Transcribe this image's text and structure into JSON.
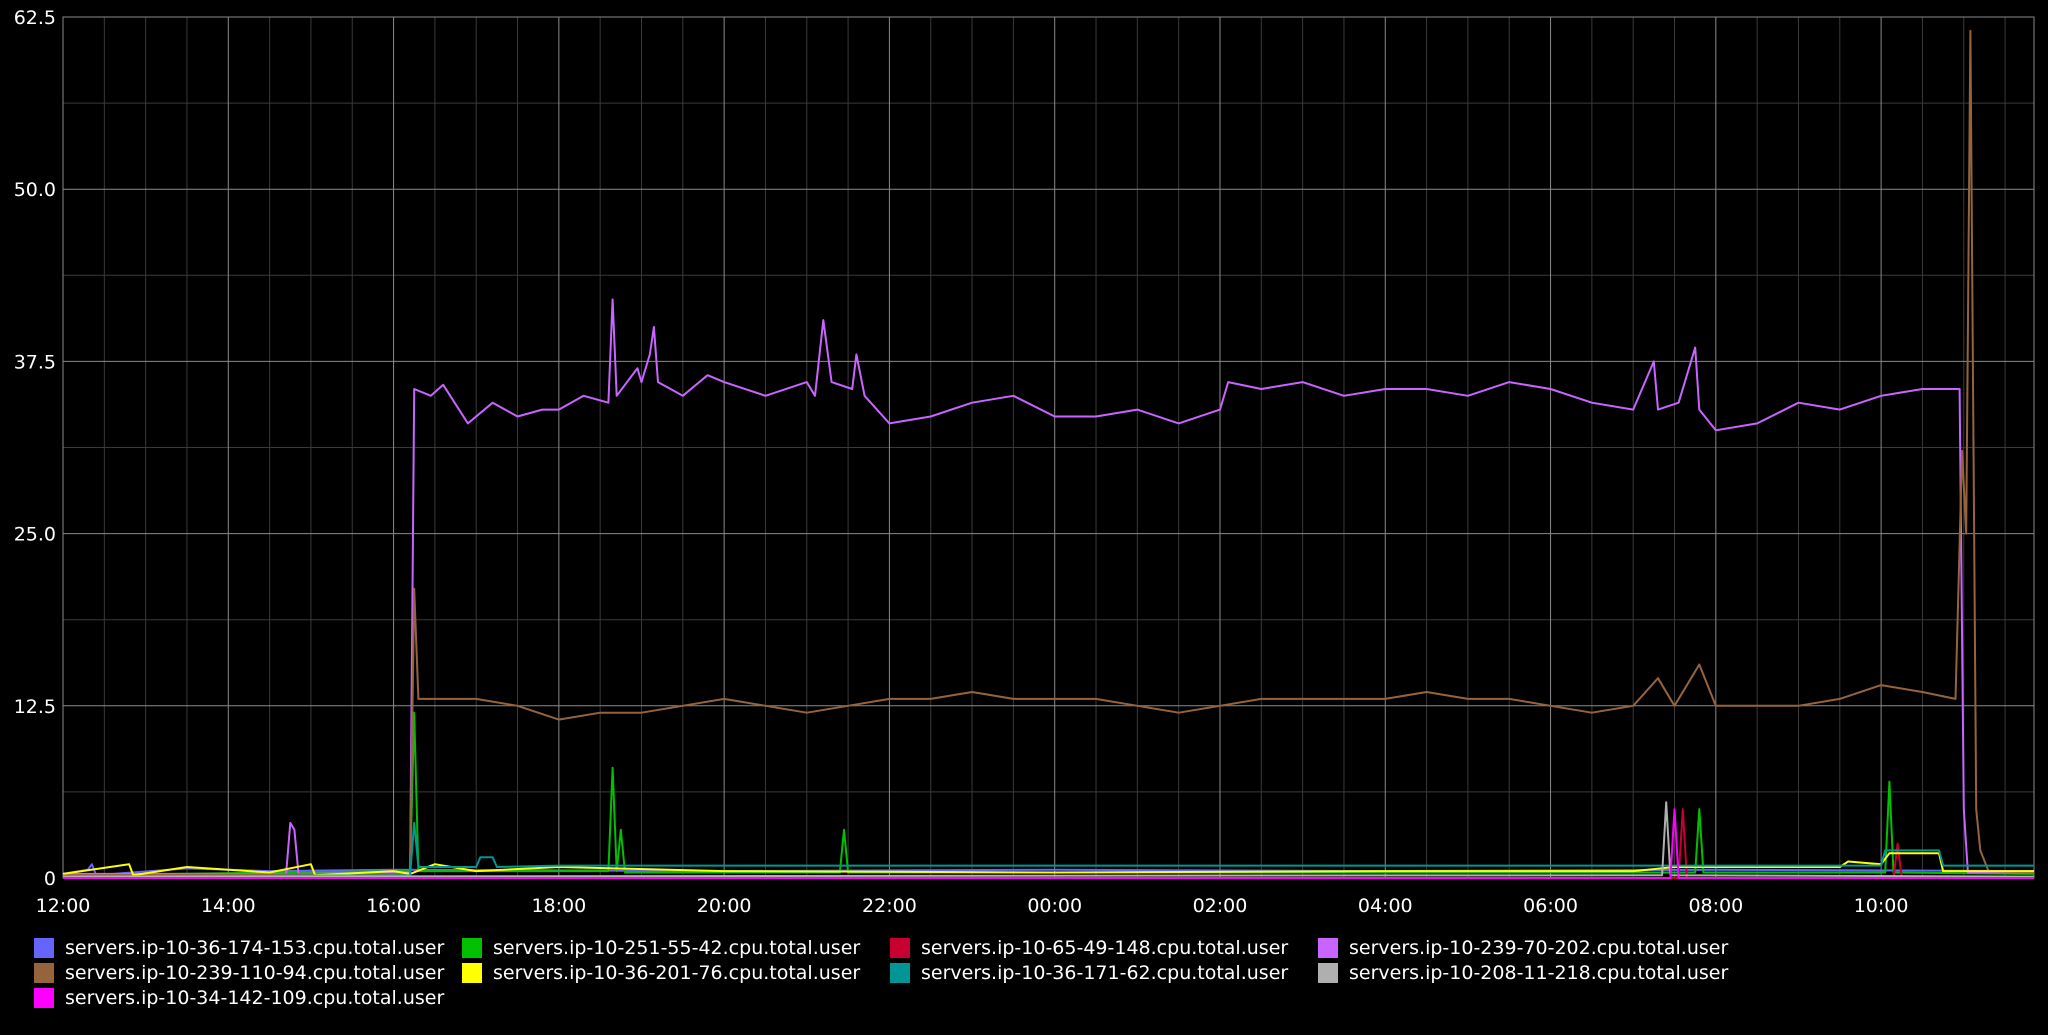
{
  "chart_data": {
    "type": "line",
    "title": "",
    "xlabel": "",
    "ylabel": "",
    "ylim": [
      0,
      62.5
    ],
    "y_ticks": [
      "0",
      "12.5",
      "25.0",
      "37.5",
      "50.0",
      "62.5"
    ],
    "x_range_hours": [
      0,
      23.85
    ],
    "x_ticks": [
      {
        "label": "12:00",
        "hour": 0
      },
      {
        "label": "14:00",
        "hour": 2
      },
      {
        "label": "16:00",
        "hour": 4
      },
      {
        "label": "18:00",
        "hour": 6
      },
      {
        "label": "20:00",
        "hour": 8
      },
      {
        "label": "22:00",
        "hour": 10
      },
      {
        "label": "00:00",
        "hour": 12
      },
      {
        "label": "02:00",
        "hour": 14
      },
      {
        "label": "04:00",
        "hour": 16
      },
      {
        "label": "06:00",
        "hour": 18
      },
      {
        "label": "08:00",
        "hour": 20
      },
      {
        "label": "10:00",
        "hour": 22
      }
    ],
    "grid": true,
    "legend_position": "bottom",
    "background": "#000000",
    "series": [
      {
        "name": "servers.ip-10-36-174-153.cpu.total.user",
        "color": "#6464ff",
        "points": [
          [
            0,
            0.3
          ],
          [
            0.3,
            0.6
          ],
          [
            0.35,
            1.0
          ],
          [
            0.4,
            0.2
          ],
          [
            1.5,
            0.7
          ],
          [
            2.5,
            0.5
          ],
          [
            4.0,
            0.6
          ],
          [
            8.0,
            0.5
          ],
          [
            12.0,
            0.6
          ],
          [
            16.0,
            0.5
          ],
          [
            20.0,
            0.6
          ],
          [
            23.85,
            0.5
          ]
        ]
      },
      {
        "name": "servers.ip-10-251-55-42.cpu.total.user",
        "color": "#00c000",
        "points": [
          [
            0,
            0.2
          ],
          [
            4.2,
            0.5
          ],
          [
            4.25,
            12.0
          ],
          [
            4.3,
            0.5
          ],
          [
            6.6,
            0.5
          ],
          [
            6.65,
            8.0
          ],
          [
            6.7,
            0.5
          ],
          [
            6.75,
            3.5
          ],
          [
            6.8,
            0.4
          ],
          [
            9.4,
            0.4
          ],
          [
            9.45,
            3.5
          ],
          [
            9.5,
            0.4
          ],
          [
            19.75,
            0.4
          ],
          [
            19.8,
            5.0
          ],
          [
            19.85,
            0.4
          ],
          [
            22.05,
            0.4
          ],
          [
            22.1,
            7.0
          ],
          [
            22.15,
            0.4
          ],
          [
            23.85,
            0.3
          ]
        ]
      },
      {
        "name": "servers.ip-10-65-49-148.cpu.total.user",
        "color": "#c80032",
        "points": [
          [
            0,
            0
          ],
          [
            19.55,
            0
          ],
          [
            19.6,
            5.0
          ],
          [
            19.65,
            0
          ],
          [
            22.15,
            0
          ],
          [
            22.2,
            2.5
          ],
          [
            22.25,
            0
          ],
          [
            23.85,
            0
          ]
        ]
      },
      {
        "name": "servers.ip-10-239-70-202.cpu.total.user",
        "color": "#c864ff",
        "points": [
          [
            0,
            0.3
          ],
          [
            2.7,
            0.3
          ],
          [
            2.75,
            4.0
          ],
          [
            2.8,
            3.5
          ],
          [
            2.85,
            0.3
          ],
          [
            4.2,
            0.4
          ],
          [
            4.25,
            35.5
          ],
          [
            4.45,
            35.0
          ],
          [
            4.6,
            35.8
          ],
          [
            4.9,
            33.0
          ],
          [
            5.2,
            34.5
          ],
          [
            5.5,
            33.5
          ],
          [
            5.8,
            34.0
          ],
          [
            6.0,
            34.0
          ],
          [
            6.3,
            35.0
          ],
          [
            6.6,
            34.5
          ],
          [
            6.65,
            42.0
          ],
          [
            6.7,
            35.0
          ],
          [
            6.95,
            37.0
          ],
          [
            7.0,
            36.0
          ],
          [
            7.1,
            38.0
          ],
          [
            7.15,
            40.0
          ],
          [
            7.2,
            36.0
          ],
          [
            7.5,
            35.0
          ],
          [
            7.8,
            36.5
          ],
          [
            8.0,
            36.0
          ],
          [
            8.5,
            35.0
          ],
          [
            9.0,
            36.0
          ],
          [
            9.1,
            35.0
          ],
          [
            9.2,
            40.5
          ],
          [
            9.3,
            36.0
          ],
          [
            9.55,
            35.5
          ],
          [
            9.6,
            38.0
          ],
          [
            9.7,
            35.0
          ],
          [
            10.0,
            33.0
          ],
          [
            10.5,
            33.5
          ],
          [
            11.0,
            34.5
          ],
          [
            11.5,
            35.0
          ],
          [
            12.0,
            33.5
          ],
          [
            12.5,
            33.5
          ],
          [
            13.0,
            34.0
          ],
          [
            13.5,
            33.0
          ],
          [
            14.0,
            34.0
          ],
          [
            14.1,
            36.0
          ],
          [
            14.5,
            35.5
          ],
          [
            15.0,
            36.0
          ],
          [
            15.5,
            35.0
          ],
          [
            16.0,
            35.5
          ],
          [
            16.5,
            35.5
          ],
          [
            17.0,
            35.0
          ],
          [
            17.5,
            36.0
          ],
          [
            18.0,
            35.5
          ],
          [
            18.5,
            34.5
          ],
          [
            19.0,
            34.0
          ],
          [
            19.25,
            37.5
          ],
          [
            19.3,
            34.0
          ],
          [
            19.55,
            34.5
          ],
          [
            19.75,
            38.5
          ],
          [
            19.8,
            34.0
          ],
          [
            20.0,
            32.5
          ],
          [
            20.5,
            33.0
          ],
          [
            21.0,
            34.5
          ],
          [
            21.5,
            34.0
          ],
          [
            22.0,
            35.0
          ],
          [
            22.5,
            35.5
          ],
          [
            22.95,
            35.5
          ],
          [
            23.0,
            5.0
          ],
          [
            23.05,
            0.4
          ],
          [
            23.85,
            0.4
          ]
        ]
      },
      {
        "name": "servers.ip-10-239-110-94.cpu.total.user",
        "color": "#96643c",
        "points": [
          [
            0,
            0.2
          ],
          [
            4.2,
            0.3
          ],
          [
            4.25,
            21.0
          ],
          [
            4.3,
            13.0
          ],
          [
            5.0,
            13.0
          ],
          [
            5.5,
            12.5
          ],
          [
            6.0,
            11.5
          ],
          [
            6.5,
            12.0
          ],
          [
            7.0,
            12.0
          ],
          [
            7.5,
            12.5
          ],
          [
            8.0,
            13.0
          ],
          [
            8.5,
            12.5
          ],
          [
            9.0,
            12.0
          ],
          [
            9.5,
            12.5
          ],
          [
            10.0,
            13.0
          ],
          [
            10.5,
            13.0
          ],
          [
            11.0,
            13.5
          ],
          [
            11.5,
            13.0
          ],
          [
            12.0,
            13.0
          ],
          [
            12.5,
            13.0
          ],
          [
            13.0,
            12.5
          ],
          [
            13.5,
            12.0
          ],
          [
            14.0,
            12.5
          ],
          [
            14.5,
            13.0
          ],
          [
            15.0,
            13.0
          ],
          [
            15.5,
            13.0
          ],
          [
            16.0,
            13.0
          ],
          [
            16.5,
            13.5
          ],
          [
            17.0,
            13.0
          ],
          [
            17.5,
            13.0
          ],
          [
            18.0,
            12.5
          ],
          [
            18.5,
            12.0
          ],
          [
            19.0,
            12.5
          ],
          [
            19.3,
            14.5
          ],
          [
            19.5,
            12.5
          ],
          [
            19.8,
            15.5
          ],
          [
            20.0,
            12.5
          ],
          [
            20.5,
            12.5
          ],
          [
            21.0,
            12.5
          ],
          [
            21.5,
            13.0
          ],
          [
            22.0,
            14.0
          ],
          [
            22.5,
            13.5
          ],
          [
            22.9,
            13.0
          ],
          [
            22.98,
            31.0
          ],
          [
            23.03,
            25.0
          ],
          [
            23.08,
            61.5
          ],
          [
            23.15,
            5.0
          ],
          [
            23.2,
            2.0
          ],
          [
            23.3,
            0.5
          ],
          [
            23.85,
            0.4
          ]
        ]
      },
      {
        "name": "servers.ip-10-36-201-76.cpu.total.user",
        "color": "#ffff00",
        "points": [
          [
            0,
            0.3
          ],
          [
            0.8,
            1.0
          ],
          [
            0.85,
            0.2
          ],
          [
            1.5,
            0.8
          ],
          [
            2.5,
            0.4
          ],
          [
            3.0,
            1.0
          ],
          [
            3.05,
            0.2
          ],
          [
            4.0,
            0.5
          ],
          [
            4.2,
            0.3
          ],
          [
            4.5,
            1.0
          ],
          [
            5.0,
            0.5
          ],
          [
            6.0,
            0.8
          ],
          [
            8.0,
            0.5
          ],
          [
            12.0,
            0.4
          ],
          [
            16.0,
            0.5
          ],
          [
            19.0,
            0.5
          ],
          [
            19.5,
            0.8
          ],
          [
            21.5,
            0.8
          ],
          [
            21.6,
            1.2
          ],
          [
            22.0,
            1.0
          ],
          [
            22.1,
            1.8
          ],
          [
            22.7,
            1.8
          ],
          [
            22.75,
            0.5
          ],
          [
            23.85,
            0.5
          ]
        ]
      },
      {
        "name": "servers.ip-10-36-171-62.cpu.total.user",
        "color": "#009696",
        "points": [
          [
            0,
            0.1
          ],
          [
            4.2,
            0.2
          ],
          [
            4.25,
            4.0
          ],
          [
            4.3,
            0.8
          ],
          [
            5.0,
            0.8
          ],
          [
            5.05,
            1.5
          ],
          [
            5.2,
            1.5
          ],
          [
            5.25,
            0.8
          ],
          [
            6.0,
            0.9
          ],
          [
            10.0,
            0.9
          ],
          [
            14.0,
            0.9
          ],
          [
            18.0,
            0.9
          ],
          [
            20.0,
            0.9
          ],
          [
            22.0,
            0.9
          ],
          [
            22.05,
            2.0
          ],
          [
            22.7,
            2.0
          ],
          [
            22.75,
            0.9
          ],
          [
            23.85,
            0.9
          ]
        ]
      },
      {
        "name": "servers.ip-10-208-11-218.cpu.total.user",
        "color": "#afafaf",
        "points": [
          [
            0,
            0.1
          ],
          [
            19.35,
            0.2
          ],
          [
            19.4,
            5.5
          ],
          [
            19.45,
            0.2
          ],
          [
            23.85,
            0.1
          ]
        ]
      },
      {
        "name": "servers.ip-10-34-142-109.cpu.total.user",
        "color": "#ff00ff",
        "points": [
          [
            0,
            0
          ],
          [
            19.45,
            0
          ],
          [
            19.5,
            5.0
          ],
          [
            19.55,
            0
          ],
          [
            23.85,
            0
          ]
        ]
      }
    ]
  }
}
